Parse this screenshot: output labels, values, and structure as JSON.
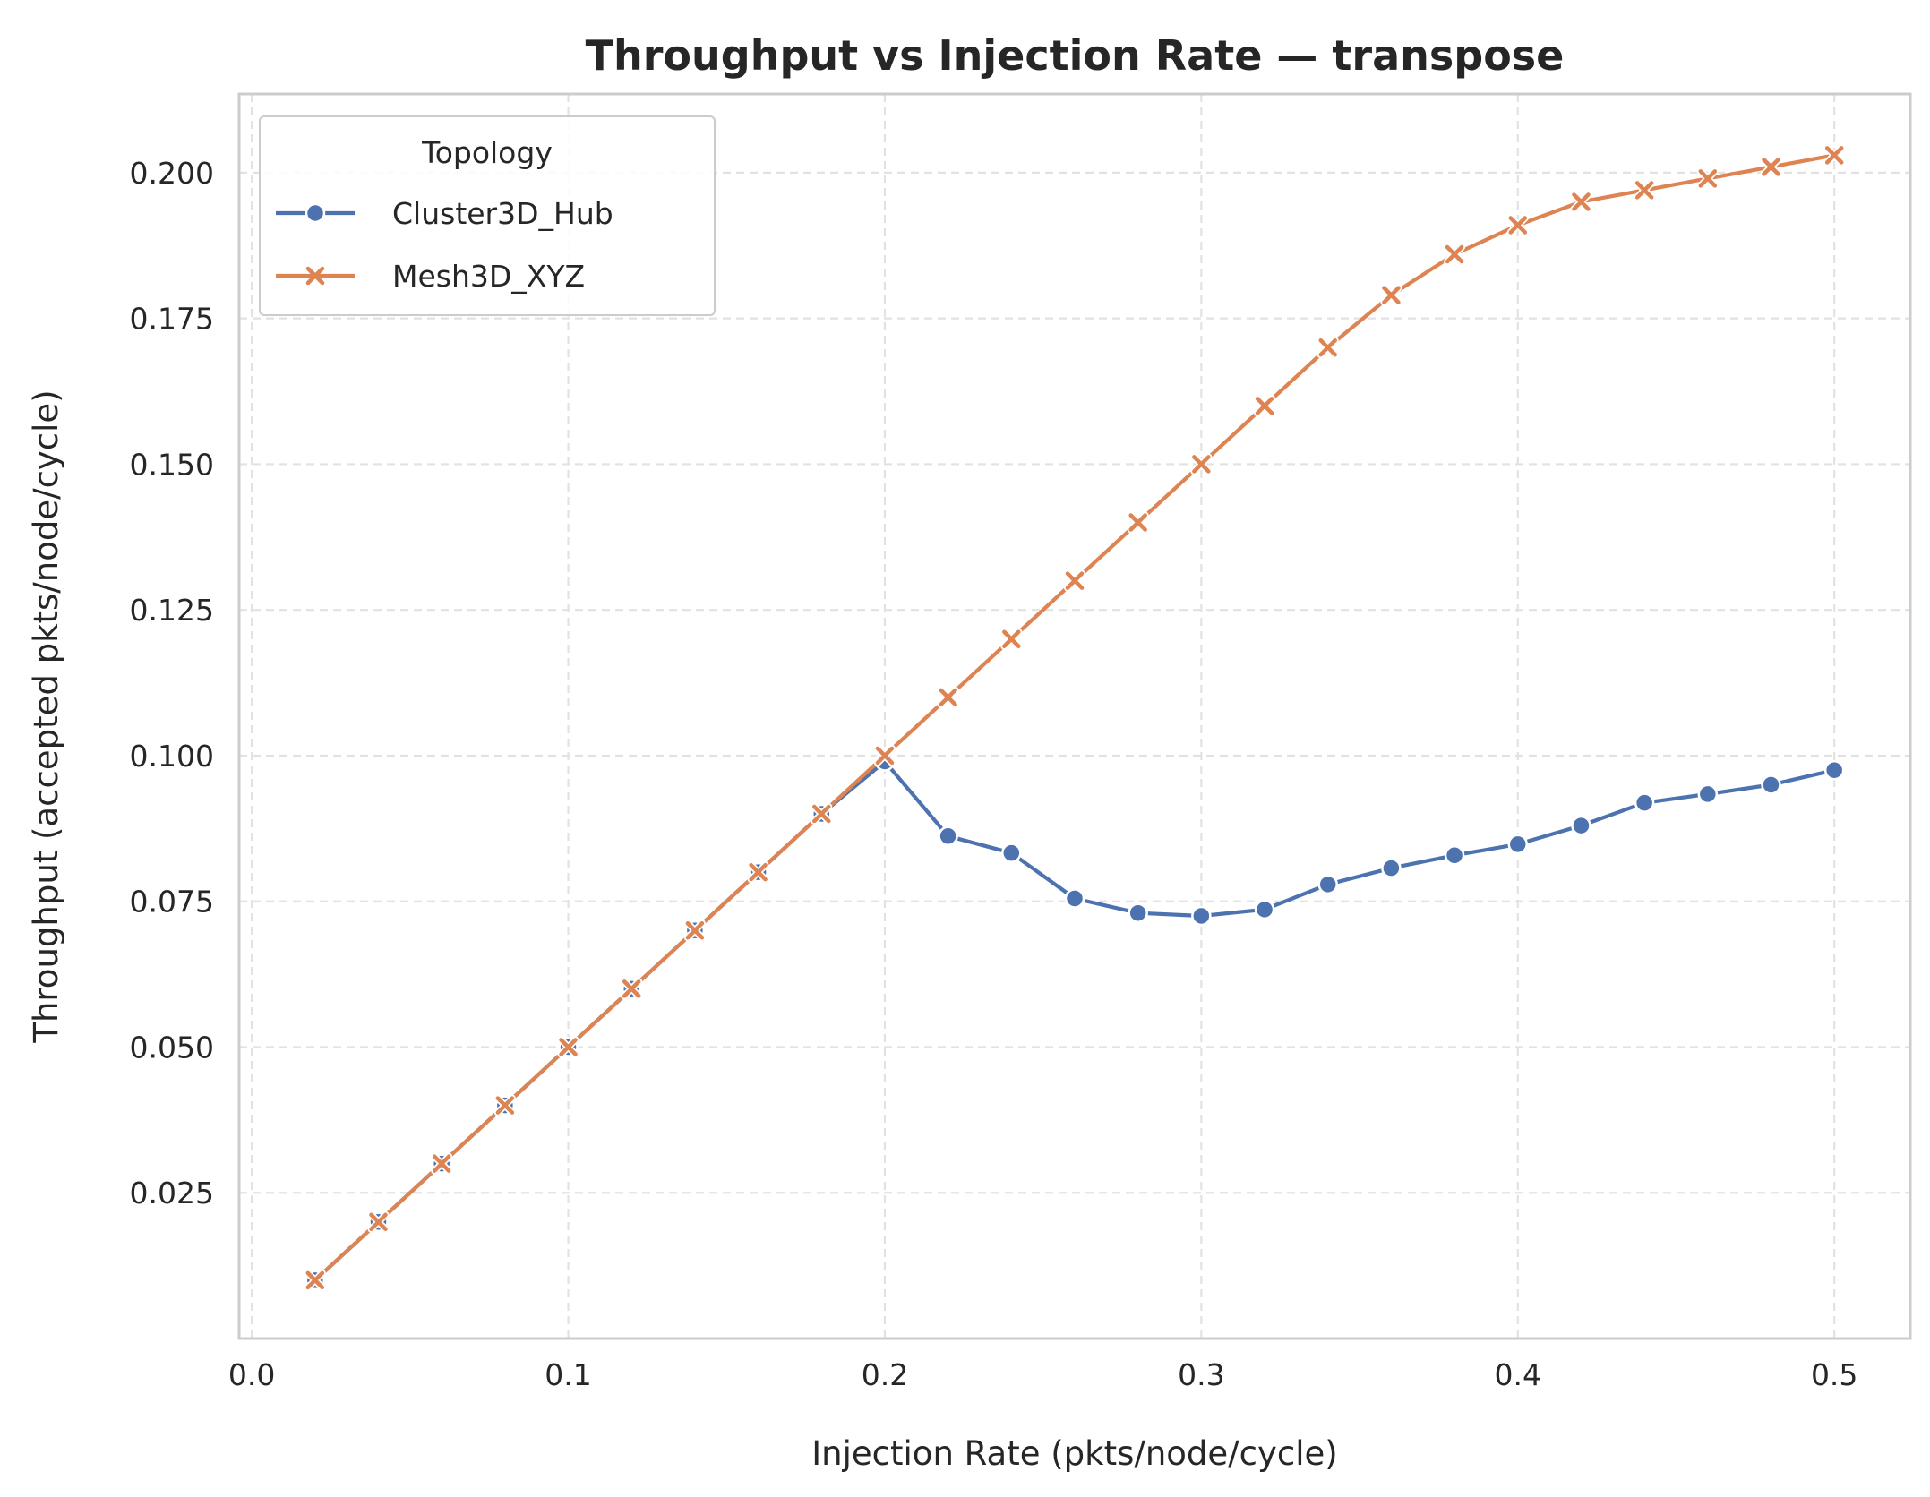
{
  "chart_data": {
    "type": "line",
    "title": "Throughput vs Injection Rate — transpose",
    "xlabel": "Injection Rate (pkts/node/cycle)",
    "ylabel": "Throughput (accepted pkts/node/cycle)",
    "xlim": [
      -0.004,
      0.524
    ],
    "ylim": [
      0.0,
      0.2135
    ],
    "xticks": [
      0.0,
      0.1,
      0.2,
      0.3,
      0.4,
      0.5
    ],
    "xtick_labels": [
      "0.0",
      "0.1",
      "0.2",
      "0.3",
      "0.4",
      "0.5"
    ],
    "yticks": [
      0.025,
      0.05,
      0.075,
      0.1,
      0.125,
      0.15,
      0.175,
      0.2
    ],
    "ytick_labels": [
      "0.025",
      "0.050",
      "0.075",
      "0.100",
      "0.125",
      "0.150",
      "0.175",
      "0.200"
    ],
    "grid": true,
    "legend": {
      "title": "Topology",
      "placement": "top-left"
    },
    "x": [
      0.02,
      0.04,
      0.06,
      0.08,
      0.1,
      0.12,
      0.14,
      0.16,
      0.18,
      0.2,
      0.22,
      0.24,
      0.26,
      0.28,
      0.3,
      0.32,
      0.34,
      0.36,
      0.38,
      0.4,
      0.42,
      0.44,
      0.46,
      0.48,
      0.5
    ],
    "series": [
      {
        "name": "Cluster3D_Hub",
        "color": "#4c72b0",
        "marker": "circle",
        "values": [
          0.01,
          0.02,
          0.03,
          0.04,
          0.05,
          0.06,
          0.07,
          0.08,
          0.09,
          0.099,
          0.0862,
          0.0833,
          0.0755,
          0.073,
          0.0725,
          0.0736,
          0.0779,
          0.0807,
          0.0829,
          0.0848,
          0.088,
          0.0919,
          0.0934,
          0.095,
          0.0975
        ]
      },
      {
        "name": "Mesh3D_XYZ",
        "color": "#dd8452",
        "marker": "x",
        "values": [
          0.01,
          0.02,
          0.03,
          0.04,
          0.05,
          0.06,
          0.07,
          0.08,
          0.09,
          0.1,
          0.11,
          0.12,
          0.13,
          0.14,
          0.15,
          0.16,
          0.17,
          0.179,
          0.186,
          0.191,
          0.195,
          0.197,
          0.199,
          0.201,
          0.203
        ]
      }
    ]
  }
}
